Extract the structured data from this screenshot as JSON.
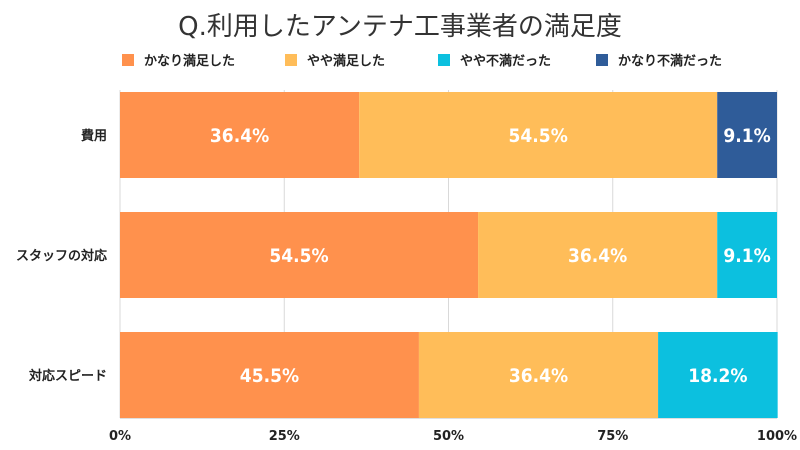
{
  "chart_data": {
    "type": "bar",
    "orientation": "horizontal",
    "stacked": true,
    "title": "Q.利用したアンテナ工事業者の満足度",
    "categories": [
      "費用",
      "スタッフの対応",
      "対応スピード"
    ],
    "series": [
      {
        "name": "かなり満足した",
        "color": "#ff914d",
        "values": [
          36.4,
          54.5,
          45.5
        ],
        "labels": [
          "36.4%",
          "54.5%",
          "45.5%"
        ]
      },
      {
        "name": "やや満足した",
        "color": "#ffbd59",
        "values": [
          54.5,
          36.4,
          36.4
        ],
        "labels": [
          "54.5%",
          "36.4%",
          "36.4%"
        ]
      },
      {
        "name": "やや不満だった",
        "color": "#0cc0df",
        "values": [
          0,
          9.1,
          18.2
        ],
        "labels": [
          "",
          "9.1%",
          "18.2%"
        ]
      },
      {
        "name": "かなり不満だった",
        "color": "#2f5c99",
        "values": [
          9.1,
          0,
          0
        ],
        "labels": [
          "9.1%",
          "",
          ""
        ]
      }
    ],
    "xlim": [
      0,
      100
    ],
    "xticks": [
      {
        "value": 0,
        "label": "0%"
      },
      {
        "value": 25,
        "label": "25%"
      },
      {
        "value": 50,
        "label": "50%"
      },
      {
        "value": 75,
        "label": "75%"
      },
      {
        "value": 100,
        "label": "100%"
      }
    ],
    "grid": true,
    "legend_position": "top"
  }
}
